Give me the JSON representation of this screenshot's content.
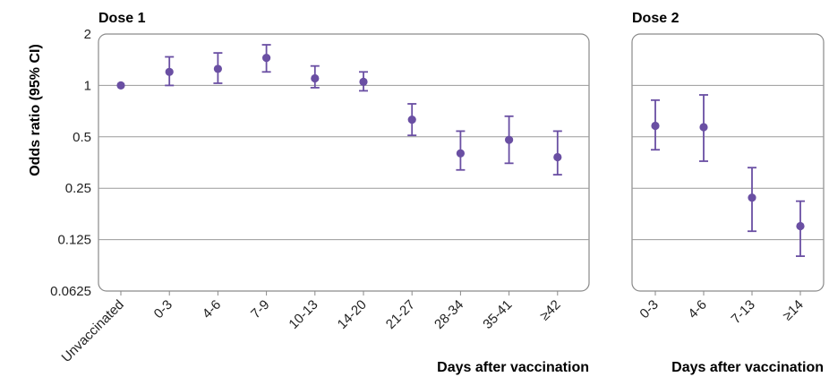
{
  "chart_data": [
    {
      "type": "scatter",
      "title": "Dose 1",
      "ylabel": "Odds ratio (95% CI)",
      "xlabel": "Days after vaccination",
      "yscale": "log2",
      "ylim": [
        0.0625,
        2
      ],
      "yticks": [
        {
          "value": 2,
          "label": "2"
        },
        {
          "value": 1,
          "label": "1"
        },
        {
          "value": 0.5,
          "label": "0.5"
        },
        {
          "value": 0.25,
          "label": "0.25"
        },
        {
          "value": 0.125,
          "label": "0.125"
        },
        {
          "value": 0.0625,
          "label": "0.0625"
        }
      ],
      "grid": true,
      "errorbars": true,
      "color": "#6a4fa3",
      "categories": [
        "Unvaccinated",
        "0-3",
        "4-6",
        "7-9",
        "10-13",
        "14-20",
        "21-27",
        "28-34",
        "35-41",
        "≥42"
      ],
      "values": [
        1.0,
        1.2,
        1.25,
        1.45,
        1.1,
        1.05,
        0.63,
        0.4,
        0.48,
        0.38
      ],
      "ci_low": [
        1.0,
        1.0,
        1.03,
        1.2,
        0.97,
        0.93,
        0.51,
        0.32,
        0.35,
        0.3
      ],
      "ci_high": [
        1.0,
        1.47,
        1.55,
        1.73,
        1.3,
        1.2,
        0.78,
        0.54,
        0.66,
        0.54
      ]
    },
    {
      "type": "scatter",
      "title": "Dose 2",
      "xlabel": "Days after vaccination",
      "yscale": "log2",
      "ylim": [
        0.0625,
        2
      ],
      "grid": true,
      "errorbars": true,
      "color": "#6a4fa3",
      "categories": [
        "0-3",
        "4-6",
        "7-13",
        "≥14"
      ],
      "values": [
        0.58,
        0.57,
        0.22,
        0.15
      ],
      "ci_low": [
        0.42,
        0.36,
        0.14,
        0.1
      ],
      "ci_high": [
        0.82,
        0.88,
        0.33,
        0.21
      ]
    }
  ]
}
